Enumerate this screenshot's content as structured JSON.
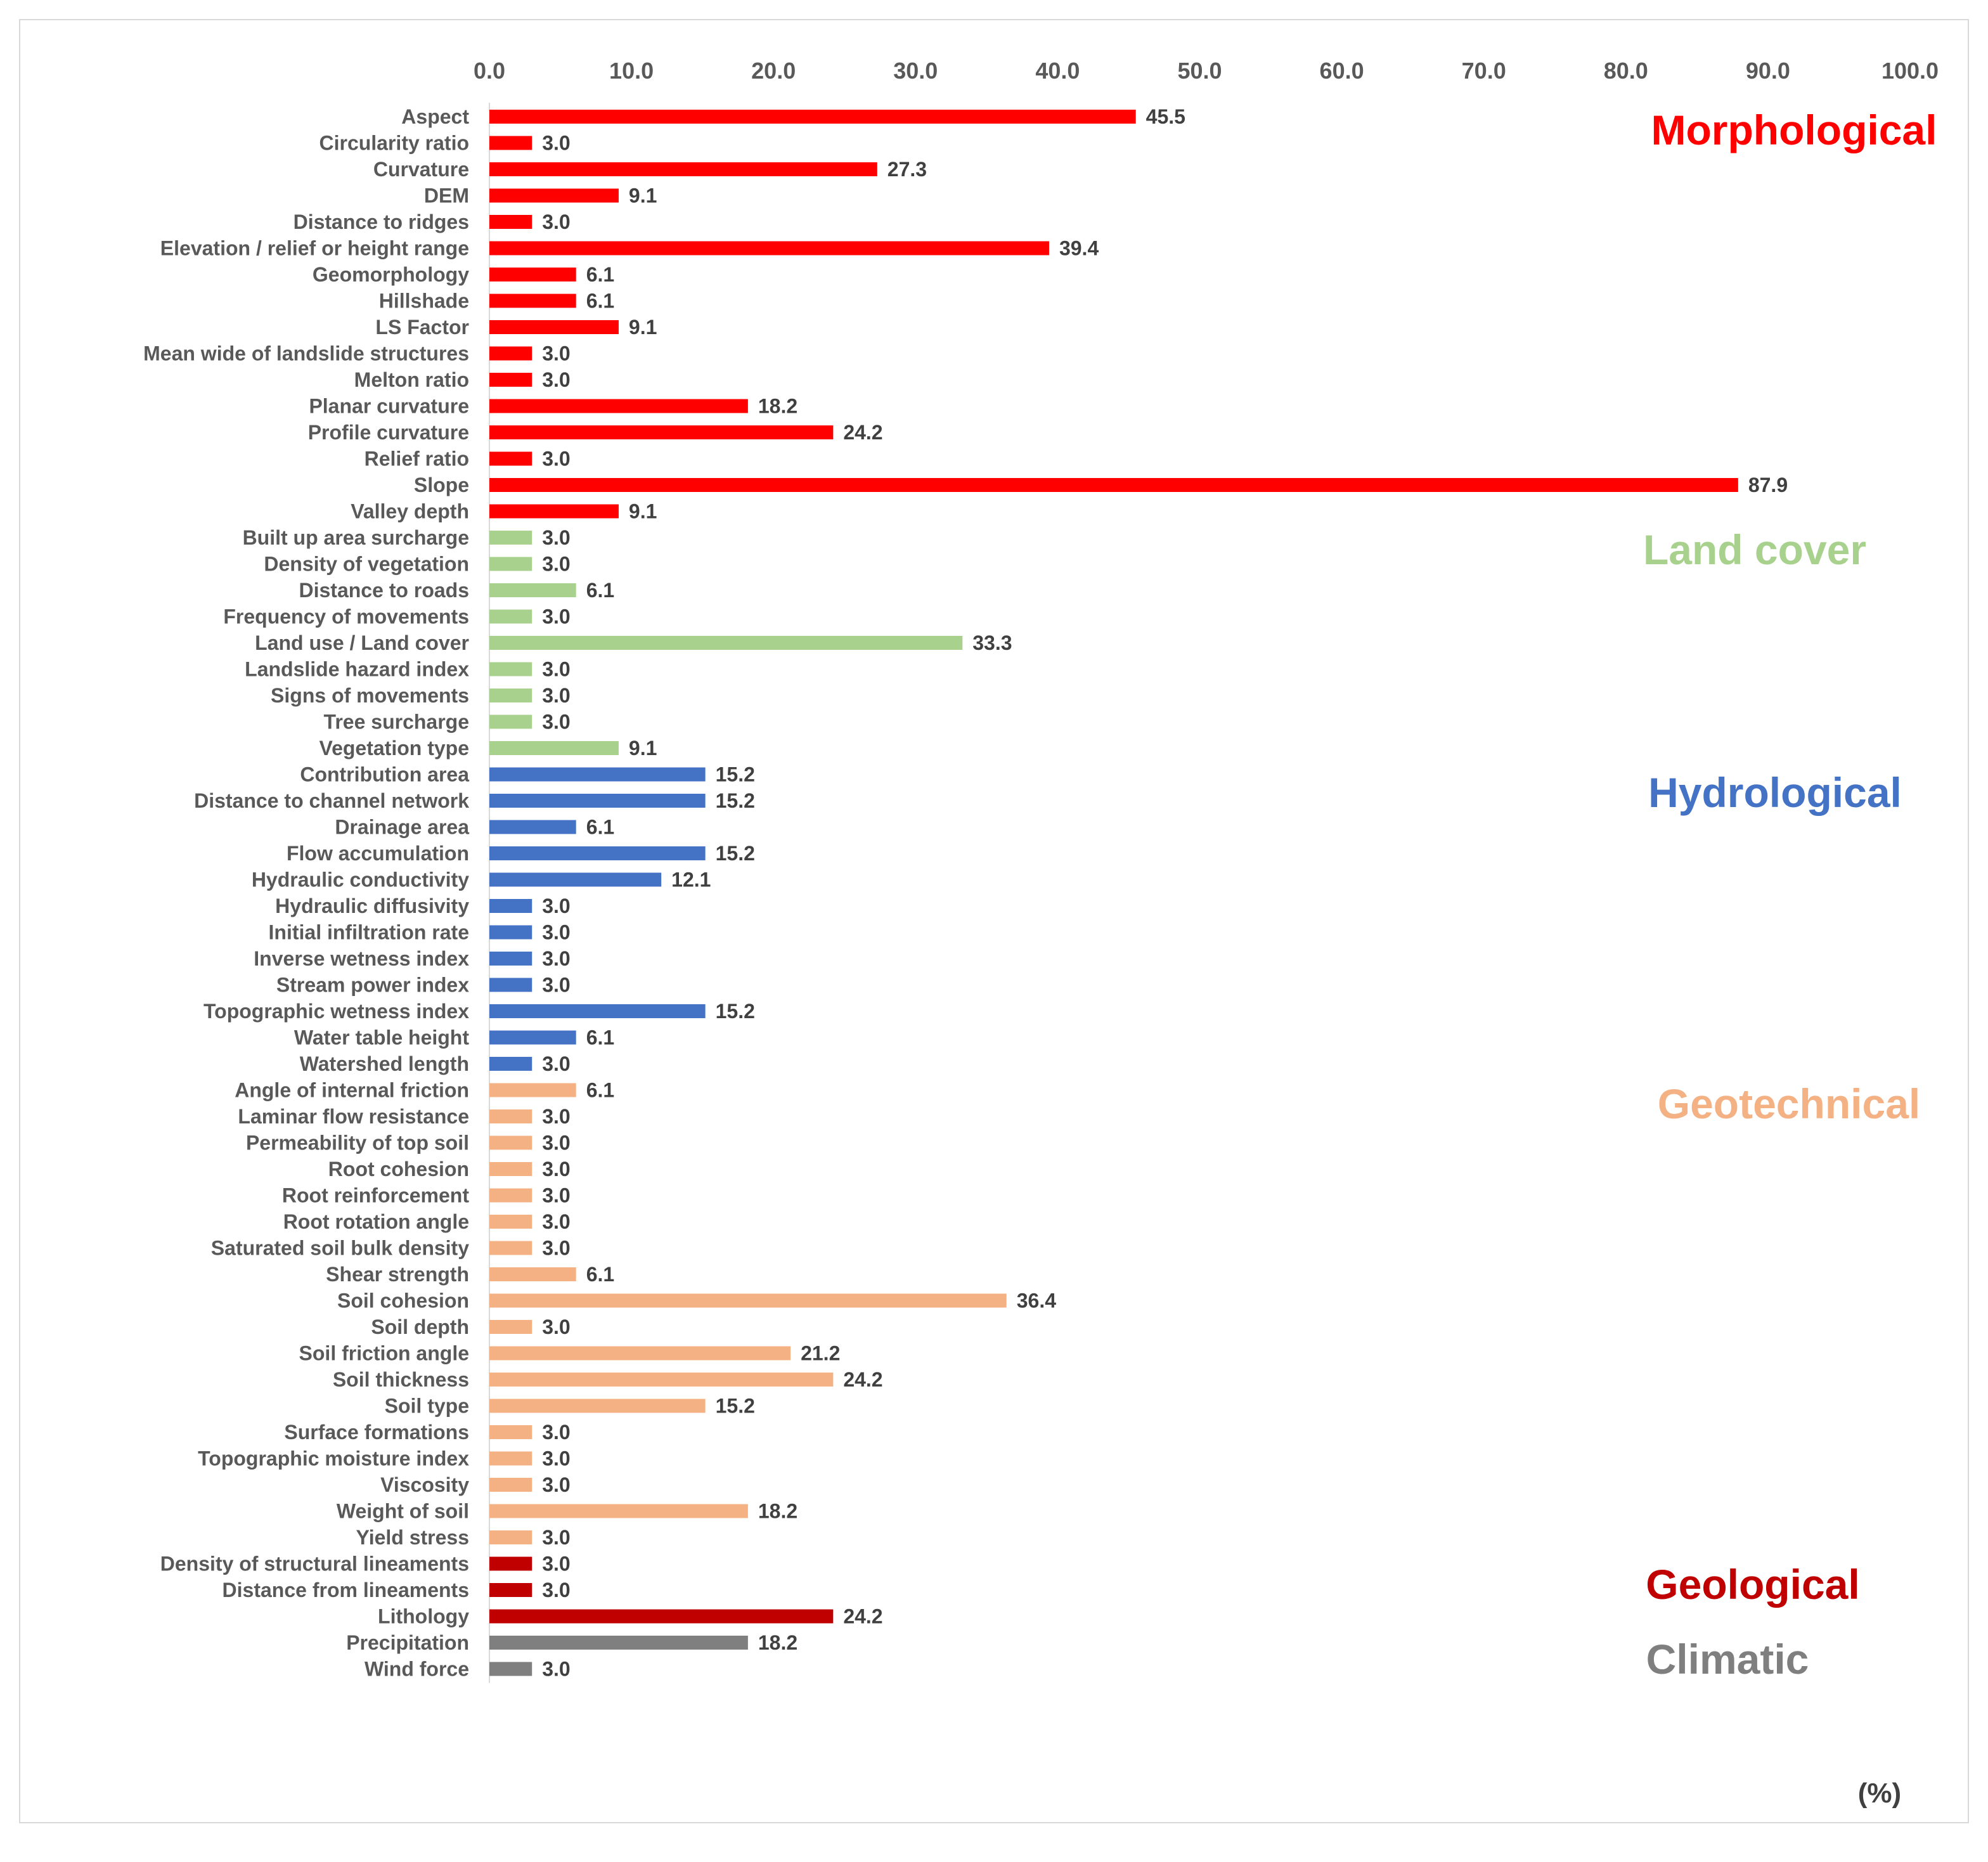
{
  "chart_data": {
    "type": "bar",
    "orientation": "horizontal",
    "x_axis_position": "top",
    "xlim": [
      0,
      100
    ],
    "x_ticks": [
      "0.0",
      "10.0",
      "20.0",
      "30.0",
      "40.0",
      "50.0",
      "60.0",
      "70.0",
      "80.0",
      "90.0",
      "100.0"
    ],
    "unit_label": "(%)",
    "groups": [
      {
        "name": "Morphological",
        "color": "#ff0000"
      },
      {
        "name": "Land cover",
        "color": "#a9d18e"
      },
      {
        "name": "Hydrological",
        "color": "#4472c4"
      },
      {
        "name": "Geotechnical",
        "color": "#f4b183"
      },
      {
        "name": "Geological",
        "color": "#c00000"
      },
      {
        "name": "Climatic",
        "color": "#7f7f7f"
      }
    ],
    "categories": [
      {
        "label": "Aspect",
        "value": 45.5,
        "group": 0,
        "text": "45.5"
      },
      {
        "label": "Circularity ratio",
        "value": 3.0,
        "group": 0,
        "text": "3.0"
      },
      {
        "label": "Curvature",
        "value": 27.3,
        "group": 0,
        "text": "27.3"
      },
      {
        "label": "DEM",
        "value": 9.1,
        "group": 0,
        "text": "9.1"
      },
      {
        "label": "Distance to ridges",
        "value": 3.0,
        "group": 0,
        "text": "3.0"
      },
      {
        "label": "Elevation / relief or height range",
        "value": 39.4,
        "group": 0,
        "text": "39.4"
      },
      {
        "label": "Geomorphology",
        "value": 6.1,
        "group": 0,
        "text": "6.1"
      },
      {
        "label": "Hillshade",
        "value": 6.1,
        "group": 0,
        "text": "6.1"
      },
      {
        "label": "LS Factor",
        "value": 9.1,
        "group": 0,
        "text": "9.1"
      },
      {
        "label": "Mean wide of landslide structures",
        "value": 3.0,
        "group": 0,
        "text": "3.0"
      },
      {
        "label": "Melton ratio",
        "value": 3.0,
        "group": 0,
        "text": "3.0"
      },
      {
        "label": "Planar curvature",
        "value": 18.2,
        "group": 0,
        "text": "18.2"
      },
      {
        "label": "Profile curvature",
        "value": 24.2,
        "group": 0,
        "text": "24.2"
      },
      {
        "label": "Relief ratio",
        "value": 3.0,
        "group": 0,
        "text": "3.0"
      },
      {
        "label": "Slope",
        "value": 87.9,
        "group": 0,
        "text": "87.9"
      },
      {
        "label": "Valley depth",
        "value": 9.1,
        "group": 0,
        "text": "9.1"
      },
      {
        "label": "Built up area surcharge",
        "value": 3.0,
        "group": 1,
        "text": "3.0"
      },
      {
        "label": "Density of vegetation",
        "value": 3.0,
        "group": 1,
        "text": "3.0"
      },
      {
        "label": "Distance to roads",
        "value": 6.1,
        "group": 1,
        "text": "6.1"
      },
      {
        "label": "Frequency of movements",
        "value": 3.0,
        "group": 1,
        "text": "3.0"
      },
      {
        "label": "Land use / Land cover",
        "value": 33.3,
        "group": 1,
        "text": "33.3"
      },
      {
        "label": "Landslide hazard index",
        "value": 3.0,
        "group": 1,
        "text": "3.0"
      },
      {
        "label": "Signs of movements",
        "value": 3.0,
        "group": 1,
        "text": "3.0"
      },
      {
        "label": "Tree surcharge",
        "value": 3.0,
        "group": 1,
        "text": "3.0"
      },
      {
        "label": "Vegetation type",
        "value": 9.1,
        "group": 1,
        "text": "9.1"
      },
      {
        "label": "Contribution area",
        "value": 15.2,
        "group": 2,
        "text": "15.2"
      },
      {
        "label": "Distance to channel network",
        "value": 15.2,
        "group": 2,
        "text": "15.2"
      },
      {
        "label": "Drainage area",
        "value": 6.1,
        "group": 2,
        "text": "6.1"
      },
      {
        "label": "Flow accumulation",
        "value": 15.2,
        "group": 2,
        "text": "15.2"
      },
      {
        "label": "Hydraulic conductivity",
        "value": 12.1,
        "group": 2,
        "text": "12.1"
      },
      {
        "label": "Hydraulic diffusivity",
        "value": 3.0,
        "group": 2,
        "text": "3.0"
      },
      {
        "label": "Initial infiltration rate",
        "value": 3.0,
        "group": 2,
        "text": "3.0"
      },
      {
        "label": "Inverse wetness index",
        "value": 3.0,
        "group": 2,
        "text": "3.0"
      },
      {
        "label": "Stream power index",
        "value": 3.0,
        "group": 2,
        "text": "3.0"
      },
      {
        "label": "Topographic wetness index",
        "value": 15.2,
        "group": 2,
        "text": "15.2"
      },
      {
        "label": "Water table height",
        "value": 6.1,
        "group": 2,
        "text": "6.1"
      },
      {
        "label": "Watershed length",
        "value": 3.0,
        "group": 2,
        "text": "3.0"
      },
      {
        "label": "Angle of internal friction",
        "value": 6.1,
        "group": 3,
        "text": "6.1"
      },
      {
        "label": "Laminar flow resistance",
        "value": 3.0,
        "group": 3,
        "text": "3.0"
      },
      {
        "label": "Permeability of top soil",
        "value": 3.0,
        "group": 3,
        "text": "3.0"
      },
      {
        "label": "Root cohesion",
        "value": 3.0,
        "group": 3,
        "text": "3.0"
      },
      {
        "label": "Root reinforcement",
        "value": 3.0,
        "group": 3,
        "text": "3.0"
      },
      {
        "label": "Root rotation angle",
        "value": 3.0,
        "group": 3,
        "text": "3.0"
      },
      {
        "label": "Saturated soil bulk density",
        "value": 3.0,
        "group": 3,
        "text": "3.0"
      },
      {
        "label": "Shear strength",
        "value": 6.1,
        "group": 3,
        "text": "6.1"
      },
      {
        "label": "Soil cohesion",
        "value": 36.4,
        "group": 3,
        "text": "36.4"
      },
      {
        "label": "Soil depth",
        "value": 3.0,
        "group": 3,
        "text": "3.0"
      },
      {
        "label": "Soil friction angle",
        "value": 21.2,
        "group": 3,
        "text": "21.2"
      },
      {
        "label": "Soil thickness",
        "value": 24.2,
        "group": 3,
        "text": "24.2"
      },
      {
        "label": "Soil type",
        "value": 15.2,
        "group": 3,
        "text": "15.2"
      },
      {
        "label": "Surface formations",
        "value": 3.0,
        "group": 3,
        "text": "3.0"
      },
      {
        "label": "Topographic moisture index",
        "value": 3.0,
        "group": 3,
        "text": "3.0"
      },
      {
        "label": "Viscosity",
        "value": 3.0,
        "group": 3,
        "text": "3.0"
      },
      {
        "label": "Weight of soil",
        "value": 18.2,
        "group": 3,
        "text": "18.2"
      },
      {
        "label": "Yield stress",
        "value": 3.0,
        "group": 3,
        "text": "3.0"
      },
      {
        "label": "Density of structural lineaments",
        "value": 3.0,
        "group": 4,
        "text": "3.0"
      },
      {
        "label": "Distance from lineaments",
        "value": 3.0,
        "group": 4,
        "text": "3.0"
      },
      {
        "label": "Lithology",
        "value": 24.2,
        "group": 4,
        "text": "24.2"
      },
      {
        "label": "Precipitation",
        "value": 18.2,
        "group": 5,
        "text": "18.2"
      },
      {
        "label": "Wind force",
        "value": 3.0,
        "group": 5,
        "text": "3.0"
      }
    ]
  }
}
